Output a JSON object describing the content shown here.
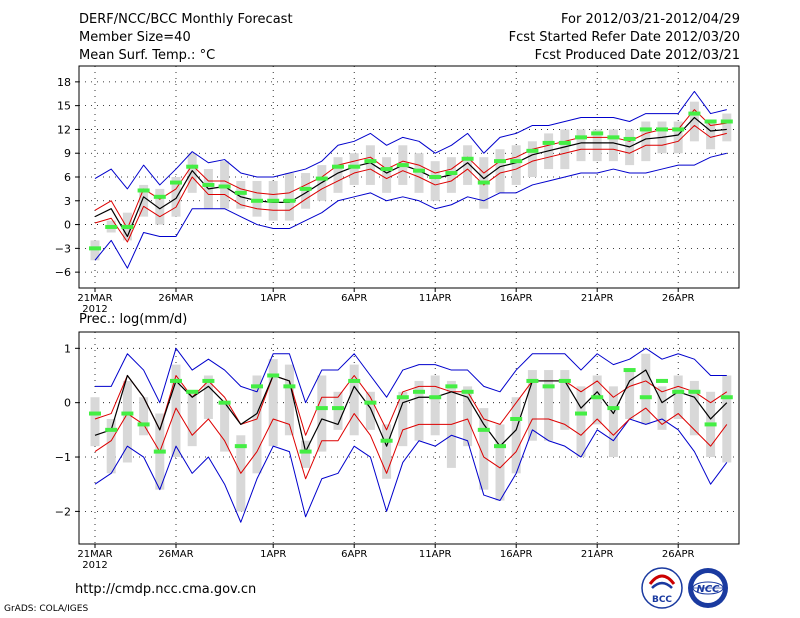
{
  "header": {
    "title": "DERF/NCC/BCC Monthly Forecast",
    "member_size": "Member Size=40",
    "variable": "Mean Surf. Temp.: °C",
    "period": "For 2012/03/21-2012/04/29",
    "started": "Fcst Started Refer Date 2012/03/20",
    "produced": "Fcst Produced Date 2012/03/21"
  },
  "footer": {
    "url": "http://cmdp.ncc.cma.gov.cn",
    "credit": "GrADS: COLA/IGES",
    "logo_bcc_text": "BCC",
    "logo_ncc_text": "NCC"
  },
  "colors": {
    "ensemble_mean": "#000000",
    "red_line": "#dd0000",
    "blue_envelope": "#0000cc",
    "box": "#d8d8d8",
    "green_mark": "#44ee44",
    "grid": "#000000"
  },
  "chart_data": [
    {
      "type": "line",
      "title": "Mean Surf. Temp.: °C",
      "x_tick_labels": [
        "21MAR",
        "26MAR",
        "1APR",
        "6APR",
        "11APR",
        "16APR",
        "21APR",
        "26APR"
      ],
      "x_tick_days": [
        1,
        6,
        12,
        17,
        22,
        27,
        32,
        37
      ],
      "year_label": "2012",
      "ylim": [
        -8,
        20
      ],
      "yticks": [
        -6,
        -3,
        0,
        3,
        6,
        9,
        12,
        15,
        18
      ],
      "days": [
        1,
        2,
        3,
        4,
        5,
        6,
        7,
        8,
        9,
        10,
        11,
        12,
        13,
        14,
        15,
        16,
        17,
        18,
        19,
        20,
        21,
        22,
        23,
        24,
        25,
        26,
        27,
        28,
        29,
        30,
        31,
        32,
        33,
        34,
        35,
        36,
        37,
        38,
        39,
        40
      ],
      "series": [
        {
          "name": "blue_upper",
          "values": [
            5.8,
            7.0,
            4.5,
            7.5,
            5.0,
            7.0,
            9.2,
            7.8,
            8.2,
            6.5,
            6.0,
            6.0,
            6.5,
            7.0,
            8.0,
            10.0,
            10.5,
            11.5,
            10.0,
            11.0,
            10.5,
            9.0,
            10.0,
            11.5,
            9.0,
            11.0,
            11.5,
            12.5,
            12.5,
            13.0,
            13.5,
            13.5,
            13.5,
            13.0,
            14.0,
            14.0,
            14.0,
            16.8,
            14.0,
            14.5
          ]
        },
        {
          "name": "blue_lower",
          "values": [
            -4.5,
            -2.0,
            -5.5,
            -1.0,
            -1.5,
            -1.5,
            2.0,
            2.0,
            2.0,
            1.0,
            0.0,
            -0.5,
            -0.5,
            0.5,
            1.5,
            3.0,
            3.5,
            4.0,
            3.0,
            3.5,
            3.0,
            2.0,
            2.5,
            3.5,
            3.0,
            4.0,
            4.0,
            5.0,
            5.5,
            6.0,
            6.5,
            6.5,
            7.0,
            6.5,
            6.5,
            7.0,
            7.5,
            7.5,
            8.5,
            9.0
          ]
        },
        {
          "name": "red_upper",
          "values": [
            1.8,
            3.0,
            -0.5,
            4.5,
            3.2,
            4.5,
            7.5,
            5.5,
            5.5,
            4.5,
            4.0,
            3.8,
            4.0,
            5.0,
            6.0,
            7.5,
            8.0,
            8.5,
            7.0,
            8.0,
            7.5,
            6.5,
            7.0,
            8.5,
            6.5,
            8.0,
            8.5,
            9.5,
            10.0,
            10.5,
            11.0,
            11.0,
            11.0,
            10.5,
            11.5,
            12.0,
            12.0,
            14.5,
            12.5,
            12.8
          ]
        },
        {
          "name": "red_lower",
          "values": [
            0.2,
            0.8,
            -2.2,
            2.3,
            1.0,
            2.2,
            6.0,
            3.8,
            3.8,
            2.5,
            2.0,
            1.8,
            1.8,
            3.2,
            4.5,
            5.5,
            6.5,
            7.0,
            5.8,
            6.8,
            6.0,
            5.0,
            5.5,
            7.0,
            5.0,
            6.5,
            7.0,
            8.0,
            8.5,
            9.0,
            9.5,
            9.5,
            9.5,
            9.0,
            10.0,
            10.0,
            10.5,
            12.5,
            11.0,
            11.5
          ]
        },
        {
          "name": "ensemble_mean",
          "values": [
            1.0,
            2.0,
            -1.5,
            3.5,
            2.0,
            3.3,
            6.8,
            4.5,
            4.8,
            3.5,
            3.0,
            2.8,
            2.8,
            4.0,
            5.3,
            6.5,
            7.3,
            7.8,
            6.5,
            7.5,
            6.8,
            5.8,
            6.3,
            7.8,
            5.8,
            7.3,
            7.8,
            8.8,
            9.3,
            9.8,
            10.3,
            10.3,
            10.3,
            9.8,
            10.8,
            11.0,
            11.3,
            13.5,
            11.8,
            12.0
          ]
        },
        {
          "name": "box_low",
          "values": [
            -4.5,
            -1.0,
            -2.0,
            1.0,
            0.0,
            1.0,
            4.0,
            2.0,
            2.0,
            2.0,
            1.0,
            0.5,
            0.5,
            2.0,
            3.0,
            4.0,
            5.0,
            5.0,
            4.0,
            5.0,
            4.0,
            3.0,
            4.0,
            5.0,
            2.0,
            4.0,
            5.0,
            6.0,
            7.0,
            7.0,
            8.0,
            8.0,
            8.0,
            7.5,
            8.0,
            9.0,
            9.0,
            10.5,
            9.5,
            10.5
          ]
        },
        {
          "name": "box_high",
          "values": [
            -2.0,
            0.5,
            1.5,
            5.0,
            4.5,
            6.0,
            9.0,
            7.0,
            8.0,
            5.5,
            5.5,
            5.5,
            6.5,
            6.5,
            7.5,
            8.5,
            9.0,
            10.0,
            8.5,
            10.0,
            9.0,
            8.0,
            8.5,
            10.0,
            8.5,
            9.5,
            10.0,
            10.5,
            11.5,
            12.0,
            12.0,
            12.0,
            12.0,
            12.0,
            13.0,
            13.0,
            13.0,
            15.5,
            13.0,
            14.0
          ]
        },
        {
          "name": "green_marks",
          "values": [
            -3.0,
            -0.3,
            -0.3,
            4.3,
            3.5,
            5.3,
            7.3,
            5.0,
            4.8,
            4.0,
            3.0,
            3.0,
            3.0,
            4.5,
            5.8,
            7.3,
            7.3,
            8.0,
            7.0,
            7.5,
            6.8,
            6.0,
            6.5,
            8.3,
            5.3,
            8.0,
            8.0,
            9.3,
            10.3,
            10.3,
            11.0,
            11.5,
            11.0,
            10.8,
            12.0,
            12.0,
            12.0,
            14.0,
            13.0,
            13.0
          ]
        }
      ]
    },
    {
      "type": "line",
      "title": "Prec.: log(mm/d)",
      "x_tick_labels": [
        "21MAR",
        "26MAR",
        "1APR",
        "6APR",
        "11APR",
        "16APR",
        "21APR",
        "26APR"
      ],
      "x_tick_days": [
        1,
        6,
        12,
        17,
        22,
        27,
        32,
        37
      ],
      "year_label": "2012",
      "ylim": [
        -2.6,
        1.3
      ],
      "yticks": [
        -2,
        -1,
        0,
        1
      ],
      "days": [
        1,
        2,
        3,
        4,
        5,
        6,
        7,
        8,
        9,
        10,
        11,
        12,
        13,
        14,
        15,
        16,
        17,
        18,
        19,
        20,
        21,
        22,
        23,
        24,
        25,
        26,
        27,
        28,
        29,
        30,
        31,
        32,
        33,
        34,
        35,
        36,
        37,
        38,
        39,
        40
      ],
      "series": [
        {
          "name": "blue_upper",
          "values": [
            0.3,
            0.3,
            0.9,
            0.6,
            0.0,
            1.0,
            0.6,
            0.8,
            0.6,
            0.3,
            0.2,
            0.9,
            0.9,
            0.0,
            0.6,
            0.6,
            0.9,
            0.5,
            0.1,
            0.6,
            0.7,
            0.7,
            0.6,
            0.6,
            0.3,
            0.2,
            0.6,
            0.9,
            0.9,
            0.9,
            0.6,
            0.9,
            0.7,
            0.8,
            1.0,
            0.8,
            0.9,
            0.8,
            0.5,
            0.5
          ]
        },
        {
          "name": "blue_lower",
          "values": [
            -1.5,
            -1.3,
            -0.8,
            -1.0,
            -1.6,
            -0.8,
            -1.3,
            -1.0,
            -1.5,
            -2.2,
            -1.4,
            -0.8,
            -0.9,
            -2.1,
            -1.4,
            -1.3,
            -0.8,
            -1.0,
            -2.0,
            -1.1,
            -0.7,
            -0.8,
            -0.6,
            -0.7,
            -1.7,
            -1.8,
            -1.3,
            -0.5,
            -0.7,
            -0.8,
            -1.0,
            -0.5,
            -0.7,
            -0.3,
            -0.4,
            -0.3,
            -0.5,
            -0.9,
            -1.5,
            -1.1
          ]
        },
        {
          "name": "red_upper",
          "values": [
            -0.3,
            -0.2,
            0.5,
            0.1,
            -0.5,
            0.5,
            0.1,
            0.4,
            0.1,
            -0.4,
            -0.3,
            0.5,
            0.4,
            -0.6,
            0.1,
            0.1,
            0.5,
            0.1,
            -0.5,
            0.2,
            0.3,
            0.3,
            0.2,
            0.2,
            -0.3,
            -0.4,
            0.0,
            0.4,
            0.4,
            0.4,
            0.2,
            0.4,
            0.1,
            0.3,
            0.4,
            0.2,
            0.3,
            0.2,
            0.0,
            0.2
          ]
        },
        {
          "name": "red_lower",
          "values": [
            -0.9,
            -0.7,
            -0.2,
            -0.4,
            -0.9,
            -0.1,
            -0.6,
            -0.3,
            -0.7,
            -1.3,
            -0.9,
            -0.3,
            -0.4,
            -1.4,
            -0.7,
            -0.7,
            -0.2,
            -0.6,
            -1.3,
            -0.5,
            -0.4,
            -0.4,
            -0.4,
            -0.3,
            -1.0,
            -1.2,
            -0.9,
            -0.3,
            -0.3,
            -0.4,
            -0.6,
            -0.3,
            -0.6,
            -0.3,
            -0.1,
            -0.4,
            -0.2,
            -0.5,
            -0.8,
            -0.4
          ]
        },
        {
          "name": "ensemble_mean",
          "values": [
            -0.6,
            -0.5,
            0.5,
            0.1,
            -0.5,
            0.4,
            0.1,
            0.3,
            0.0,
            -0.4,
            -0.2,
            0.5,
            0.4,
            -0.9,
            -0.3,
            -0.4,
            0.3,
            -0.1,
            -0.8,
            0.0,
            0.1,
            0.1,
            0.2,
            0.1,
            -0.4,
            -0.8,
            -0.5,
            0.4,
            0.4,
            0.4,
            -0.1,
            0.2,
            -0.2,
            0.4,
            0.6,
            0.0,
            0.2,
            0.1,
            -0.3,
            0.0
          ]
        },
        {
          "name": "box_low",
          "values": [
            -0.8,
            -1.3,
            -1.1,
            -0.6,
            -1.6,
            -1.0,
            -0.8,
            -0.3,
            -0.9,
            -2.0,
            -1.3,
            -0.8,
            -0.6,
            -1.2,
            -0.9,
            -0.5,
            -0.6,
            -0.5,
            -1.4,
            -0.8,
            -0.7,
            -0.6,
            -1.2,
            -0.8,
            -1.6,
            -1.8,
            -1.3,
            -0.7,
            -0.7,
            -0.5,
            -1.0,
            -0.4,
            -1.0,
            -0.3,
            -0.4,
            -0.5,
            -0.3,
            -0.6,
            -1.0,
            -1.1
          ]
        },
        {
          "name": "box_high",
          "values": [
            0.1,
            -0.3,
            0.4,
            0.1,
            -0.2,
            0.7,
            0.2,
            0.5,
            0.0,
            -0.6,
            0.5,
            0.8,
            0.7,
            -0.7,
            0.5,
            0.2,
            0.7,
            0.2,
            -0.4,
            0.2,
            0.4,
            0.5,
            0.4,
            0.3,
            -0.1,
            -0.4,
            0.1,
            0.6,
            0.6,
            0.6,
            0.3,
            0.5,
            0.3,
            0.6,
            0.9,
            0.3,
            0.5,
            0.4,
            0.2,
            0.5
          ]
        },
        {
          "name": "green_marks",
          "values": [
            -0.2,
            -0.5,
            -0.2,
            -0.4,
            -0.9,
            0.4,
            0.2,
            0.4,
            0.0,
            -0.8,
            0.3,
            0.5,
            0.3,
            -0.9,
            -0.1,
            -0.1,
            0.4,
            0.0,
            -0.7,
            0.1,
            0.2,
            0.1,
            0.3,
            0.2,
            -0.5,
            -0.8,
            -0.3,
            0.4,
            0.3,
            0.4,
            -0.2,
            0.1,
            -0.1,
            0.6,
            0.1,
            0.4,
            0.2,
            0.2,
            -0.4,
            0.1
          ]
        }
      ]
    }
  ]
}
